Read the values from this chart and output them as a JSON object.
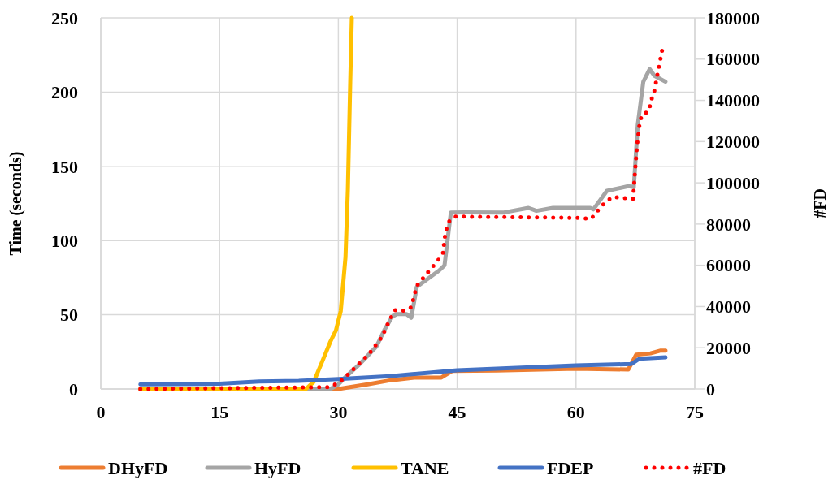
{
  "chart_data": {
    "type": "line",
    "ylabel": "Time (seconds)",
    "y2label": "#FD",
    "xlim": [
      0,
      75
    ],
    "xticks": [
      0,
      15,
      30,
      45,
      60,
      75
    ],
    "ylim": [
      0,
      250
    ],
    "yticks": [
      0,
      50,
      100,
      150,
      200,
      250
    ],
    "y2lim": [
      0,
      180000
    ],
    "y2ticks": [
      0,
      20000,
      40000,
      60000,
      80000,
      100000,
      120000,
      140000,
      160000,
      180000
    ],
    "grid": true,
    "legend": "bottom",
    "line_style": "solid",
    "series": [
      {
        "name": "DHyFD",
        "color": "#ed7d31",
        "x": [
          5,
          30,
          33.7,
          36.5,
          39.6,
          43,
          44.4,
          50,
          60,
          66.6,
          67.6,
          69.4,
          70.7,
          71.3
        ],
        "values": [
          0,
          0,
          3.1,
          5.8,
          7.7,
          7.7,
          12.2,
          12.5,
          13.7,
          13.1,
          23.1,
          24,
          25.9,
          25.9
        ]
      },
      {
        "name": "HyFD",
        "color": "#a5a5a5",
        "x": [
          5,
          29,
          30,
          31,
          32.7,
          34.8,
          35.8,
          36.8,
          37.4,
          38.6,
          39.2,
          39.9,
          42.7,
          43.4,
          44.2,
          45.9,
          50.9,
          54,
          55,
          57.1,
          61.8,
          62.2,
          63.9,
          66.6,
          67.3,
          67.8,
          68.5,
          69.3,
          69.9,
          71.3
        ],
        "values": [
          0,
          0,
          3.1,
          8.6,
          16.8,
          28.6,
          39.6,
          48.7,
          50.5,
          50.5,
          48,
          68.8,
          79.7,
          83.3,
          118.9,
          119,
          118.9,
          122,
          120,
          122,
          122,
          121,
          133.5,
          136.6,
          136,
          178,
          207,
          215.5,
          211,
          207
        ]
      },
      {
        "name": "TANE",
        "color": "#ffc000",
        "x": [
          5,
          25.9,
          26.9,
          27.9,
          29,
          29.7,
          30.3,
          30.9,
          31.2,
          31.5,
          31.7
        ],
        "values": [
          0,
          0,
          4.9,
          17.7,
          32,
          39.6,
          52.5,
          88.8,
          134.5,
          207,
          250
        ]
      },
      {
        "name": "FDEP",
        "color": "#4472c4",
        "x": [
          5,
          15,
          20,
          25,
          30,
          36.5,
          45,
          60,
          67,
          68,
          71.3
        ],
        "values": [
          3.1,
          3.5,
          5,
          5.5,
          6.7,
          8.6,
          12.6,
          15.9,
          16.8,
          20.4,
          21.3
        ]
      },
      {
        "name": "#FD",
        "color": "#ff0000",
        "axis": "y2",
        "line_style": "dotted",
        "x": [
          5,
          28.8,
          30,
          31,
          33.8,
          35.5,
          36.5,
          37.2,
          38.4,
          39.2,
          39.9,
          41.6,
          42.5,
          43.2,
          43.5,
          43.9,
          44.7,
          60.5,
          61.9,
          62.7,
          63.6,
          64.6,
          67.2,
          67.3,
          67.7,
          68,
          68.3,
          69.2,
          69.5,
          69.9,
          70.4,
          70.9
        ],
        "values": [
          0,
          900,
          2900,
          6200,
          16700,
          25200,
          33800,
          38300,
          37900,
          39700,
          50100,
          58000,
          62000,
          65900,
          75700,
          81000,
          83600,
          83000,
          82500,
          86300,
          90200,
          93100,
          92200,
          97400,
          117800,
          127600,
          132900,
          134800,
          140100,
          144700,
          154800,
          164800
        ]
      }
    ]
  }
}
